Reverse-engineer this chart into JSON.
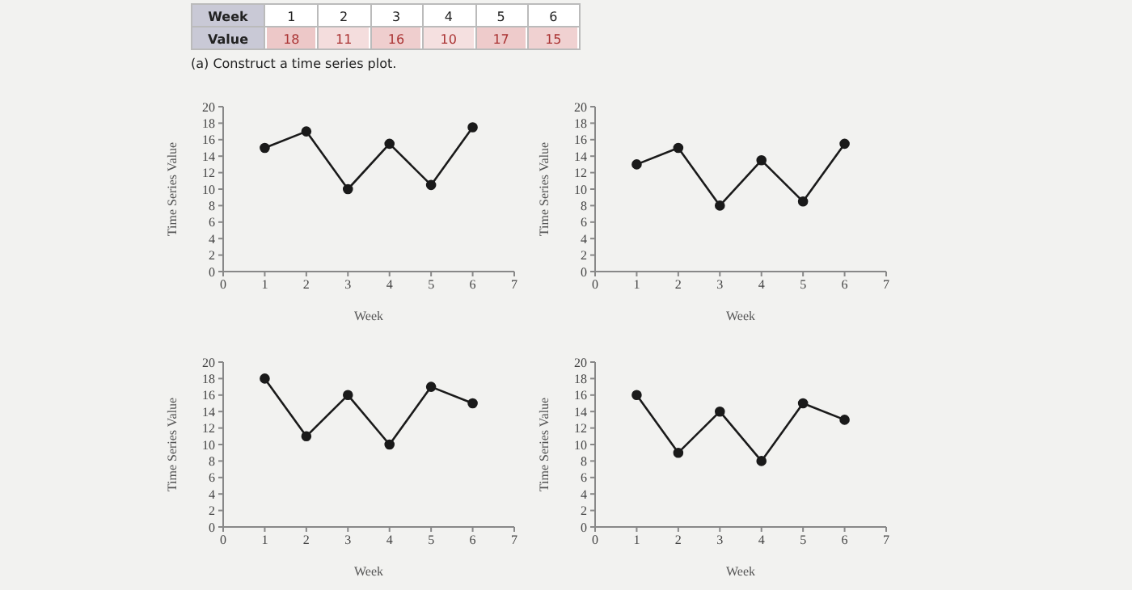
{
  "chart_data": [
    {
      "type": "heatmap",
      "categories": [
        "1",
        "2",
        "3",
        "4",
        "5",
        "6"
      ],
      "y_categories": [
        "Value"
      ],
      "cells": [
        [
          18,
          11,
          16,
          10,
          17,
          15
        ]
      ],
      "cell_labels": [
        [
          "18",
          "11",
          "16",
          "10",
          "17",
          "15"
        ]
      ],
      "xlabel": "Week",
      "annotations": [
        "(a) Construct a time series plot."
      ]
    },
    {
      "type": "line",
      "x": [
        1,
        2,
        3,
        4,
        5,
        6
      ],
      "series": [
        {
          "color": "#1a1a1a",
          "values": [
            15,
            17,
            10,
            15.5,
            10.5,
            17.5
          ]
        }
      ],
      "xlim": [
        0,
        7
      ],
      "xticks": [
        0,
        1,
        2,
        3,
        4,
        5,
        6,
        7
      ],
      "ylim": [
        0,
        20
      ],
      "yticks": [
        0,
        2,
        4,
        6,
        8,
        10,
        12,
        14,
        16,
        18,
        20
      ],
      "xlabel": "Week",
      "ylabel": "Time Series Value",
      "marker": "circle",
      "grid": false
    },
    {
      "type": "line",
      "x": [
        1,
        2,
        3,
        4,
        5,
        6
      ],
      "series": [
        {
          "color": "#1a1a1a",
          "values": [
            13,
            15,
            8,
            13.5,
            8.5,
            15.5
          ]
        }
      ],
      "xlim": [
        0,
        7
      ],
      "xticks": [
        0,
        1,
        2,
        3,
        4,
        5,
        6,
        7
      ],
      "ylim": [
        0,
        20
      ],
      "yticks": [
        0,
        2,
        4,
        6,
        8,
        10,
        12,
        14,
        16,
        18,
        20
      ],
      "xlabel": "Week",
      "ylabel": "Time Series Value",
      "marker": "circle",
      "grid": false
    },
    {
      "type": "line",
      "x": [
        1,
        2,
        3,
        4,
        5,
        6
      ],
      "series": [
        {
          "color": "#1a1a1a",
          "values": [
            18,
            11,
            16,
            10,
            17,
            15
          ]
        }
      ],
      "xlim": [
        0,
        7
      ],
      "xticks": [
        0,
        1,
        2,
        3,
        4,
        5,
        6,
        7
      ],
      "ylim": [
        0,
        20
      ],
      "yticks": [
        0,
        2,
        4,
        6,
        8,
        10,
        12,
        14,
        16,
        18,
        20
      ],
      "xlabel": "Week",
      "ylabel": "Time Series Value",
      "marker": "circle",
      "grid": false
    },
    {
      "type": "line",
      "x": [
        1,
        2,
        3,
        4,
        5,
        6
      ],
      "series": [
        {
          "color": "#1a1a1a",
          "values": [
            16,
            9,
            14,
            8,
            15,
            13
          ]
        }
      ],
      "xlim": [
        0,
        7
      ],
      "xticks": [
        0,
        1,
        2,
        3,
        4,
        5,
        6,
        7
      ],
      "ylim": [
        0,
        20
      ],
      "yticks": [
        0,
        2,
        4,
        6,
        8,
        10,
        12,
        14,
        16,
        18,
        20
      ],
      "xlabel": "Week",
      "ylabel": "Time Series Value",
      "marker": "circle",
      "grid": false
    }
  ]
}
